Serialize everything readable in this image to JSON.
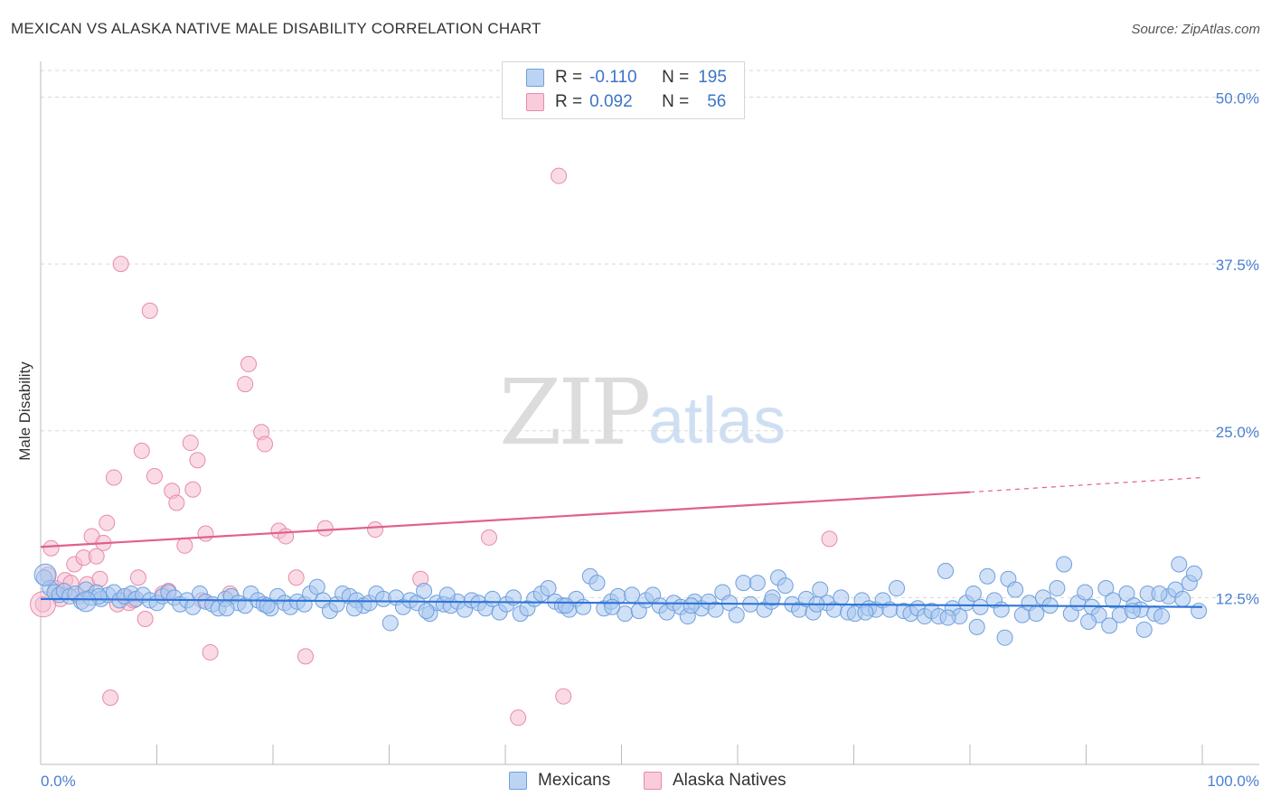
{
  "header": {
    "title": "MEXICAN VS ALASKA NATIVE MALE DISABILITY CORRELATION CHART",
    "source": "Source: ZipAtlas.com"
  },
  "watermark": {
    "zip": "ZIP",
    "atlas": "atlas"
  },
  "legend": {
    "rows": [
      {
        "r_label": "R =",
        "r_value": "-0.110",
        "n_label": "N =",
        "n_value": "195"
      },
      {
        "r_label": "R =",
        "r_value": "0.092",
        "n_label": "N =",
        "n_value": "56"
      }
    ]
  },
  "bottom_legend": {
    "series1": "Mexicans",
    "series2": "Alaska Natives"
  },
  "colors": {
    "blue_fill": "#aac8f0",
    "blue_stroke": "#6f9fdc",
    "blue_line": "#2f74d6",
    "pink_fill": "#f6bdd0",
    "pink_stroke": "#e88aab",
    "pink_line": "#e0608e",
    "tick_text": "#4a7fd0",
    "grid": "#d8d8d8"
  },
  "chart_data": {
    "type": "scatter",
    "title": "MEXICAN VS ALASKA NATIVE MALE DISABILITY CORRELATION CHART",
    "xlabel": "",
    "ylabel": "Male Disability",
    "xlim": [
      0,
      100
    ],
    "ylim": [
      0,
      52
    ],
    "x_tick_labels": [
      "0.0%",
      "100.0%"
    ],
    "y_ticks": [
      12.5,
      25.0,
      37.5,
      50.0
    ],
    "y_tick_labels": [
      "12.5%",
      "25.0%",
      "37.5%",
      "50.0%"
    ],
    "grid": "horizontal dashed",
    "legend_position": "top-center",
    "series": [
      {
        "name": "Mexicans",
        "r": -0.11,
        "n": 195,
        "trend": {
          "x": [
            0,
            100
          ],
          "y": [
            12.4,
            11.8
          ]
        },
        "points": [
          [
            0.3,
            14.0
          ],
          [
            0.8,
            13.2
          ],
          [
            1.2,
            12.9
          ],
          [
            1.6,
            12.7
          ],
          [
            2.0,
            13.0
          ],
          [
            2.5,
            12.6
          ],
          [
            3.0,
            12.8
          ],
          [
            3.5,
            12.2
          ],
          [
            3.9,
            13.1
          ],
          [
            4.3,
            12.5
          ],
          [
            4.8,
            12.9
          ],
          [
            5.2,
            12.4
          ],
          [
            5.8,
            12.7
          ],
          [
            6.3,
            12.9
          ],
          [
            6.8,
            12.3
          ],
          [
            7.2,
            12.6
          ],
          [
            7.8,
            12.8
          ],
          [
            8.2,
            12.4
          ],
          [
            8.8,
            12.7
          ],
          [
            9.4,
            12.3
          ],
          [
            10.0,
            12.1
          ],
          [
            10.5,
            12.6
          ],
          [
            11.0,
            12.9
          ],
          [
            11.5,
            12.5
          ],
          [
            12.0,
            12.0
          ],
          [
            12.6,
            12.3
          ],
          [
            13.1,
            11.8
          ],
          [
            13.7,
            12.8
          ],
          [
            14.2,
            12.2
          ],
          [
            14.8,
            12.0
          ],
          [
            15.3,
            11.7
          ],
          [
            15.9,
            12.4
          ],
          [
            16.4,
            12.6
          ],
          [
            17.0,
            12.1
          ],
          [
            17.6,
            11.9
          ],
          [
            18.1,
            12.8
          ],
          [
            18.7,
            12.3
          ],
          [
            19.2,
            12.0
          ],
          [
            19.8,
            11.7
          ],
          [
            20.4,
            12.6
          ],
          [
            21.0,
            12.1
          ],
          [
            21.5,
            11.8
          ],
          [
            22.1,
            12.2
          ],
          [
            22.7,
            12.0
          ],
          [
            23.2,
            12.8
          ],
          [
            23.8,
            13.3
          ],
          [
            24.3,
            12.3
          ],
          [
            24.9,
            11.5
          ],
          [
            25.5,
            12.0
          ],
          [
            26.0,
            12.8
          ],
          [
            26.6,
            12.6
          ],
          [
            27.2,
            12.3
          ],
          [
            27.8,
            11.9
          ],
          [
            28.3,
            12.1
          ],
          [
            28.9,
            12.8
          ],
          [
            29.5,
            12.4
          ],
          [
            30.1,
            10.6
          ],
          [
            30.6,
            12.5
          ],
          [
            31.2,
            11.8
          ],
          [
            31.8,
            12.3
          ],
          [
            32.4,
            12.1
          ],
          [
            33.0,
            13.0
          ],
          [
            33.5,
            11.3
          ],
          [
            34.1,
            12.1
          ],
          [
            34.7,
            12.0
          ],
          [
            35.3,
            11.9
          ],
          [
            35.9,
            12.2
          ],
          [
            36.5,
            11.6
          ],
          [
            37.1,
            12.3
          ],
          [
            37.7,
            12.1
          ],
          [
            38.3,
            11.7
          ],
          [
            38.9,
            12.4
          ],
          [
            39.5,
            11.4
          ],
          [
            40.1,
            12.0
          ],
          [
            40.7,
            12.5
          ],
          [
            41.3,
            11.3
          ],
          [
            41.9,
            11.7
          ],
          [
            42.5,
            12.4
          ],
          [
            43.1,
            12.8
          ],
          [
            43.7,
            13.2
          ],
          [
            44.3,
            12.2
          ],
          [
            44.9,
            11.9
          ],
          [
            45.5,
            11.6
          ],
          [
            46.1,
            12.4
          ],
          [
            46.7,
            11.8
          ],
          [
            47.3,
            14.1
          ],
          [
            47.9,
            13.6
          ],
          [
            48.5,
            11.7
          ],
          [
            49.1,
            12.2
          ],
          [
            49.7,
            12.6
          ],
          [
            50.3,
            11.3
          ],
          [
            50.9,
            12.7
          ],
          [
            51.5,
            11.5
          ],
          [
            52.1,
            12.3
          ],
          [
            52.7,
            12.7
          ],
          [
            53.3,
            11.9
          ],
          [
            53.9,
            11.4
          ],
          [
            54.5,
            12.1
          ],
          [
            55.1,
            11.8
          ],
          [
            55.7,
            11.1
          ],
          [
            56.3,
            12.2
          ],
          [
            56.9,
            11.7
          ],
          [
            57.5,
            12.2
          ],
          [
            58.1,
            11.6
          ],
          [
            58.7,
            12.9
          ],
          [
            59.3,
            12.1
          ],
          [
            59.9,
            11.2
          ],
          [
            60.5,
            13.6
          ],
          [
            61.1,
            12.0
          ],
          [
            61.7,
            13.6
          ],
          [
            62.3,
            11.6
          ],
          [
            62.9,
            12.2
          ],
          [
            63.5,
            14.0
          ],
          [
            64.1,
            13.4
          ],
          [
            64.7,
            12.0
          ],
          [
            65.3,
            11.6
          ],
          [
            65.9,
            12.4
          ],
          [
            66.5,
            11.4
          ],
          [
            67.1,
            13.1
          ],
          [
            67.7,
            12.1
          ],
          [
            68.3,
            11.6
          ],
          [
            68.9,
            12.5
          ],
          [
            69.5,
            11.4
          ],
          [
            70.1,
            11.3
          ],
          [
            70.7,
            12.3
          ],
          [
            71.3,
            11.7
          ],
          [
            71.9,
            11.6
          ],
          [
            72.5,
            12.3
          ],
          [
            73.1,
            11.6
          ],
          [
            73.7,
            13.2
          ],
          [
            74.3,
            11.5
          ],
          [
            74.9,
            11.3
          ],
          [
            75.5,
            11.7
          ],
          [
            76.1,
            11.1
          ],
          [
            76.7,
            11.5
          ],
          [
            77.3,
            11.1
          ],
          [
            77.9,
            14.5
          ],
          [
            78.5,
            11.7
          ],
          [
            79.1,
            11.1
          ],
          [
            79.7,
            12.1
          ],
          [
            80.3,
            12.8
          ],
          [
            80.9,
            11.8
          ],
          [
            81.5,
            14.1
          ],
          [
            82.1,
            12.3
          ],
          [
            82.7,
            11.6
          ],
          [
            83.3,
            13.9
          ],
          [
            83.9,
            13.1
          ],
          [
            84.5,
            11.2
          ],
          [
            85.1,
            12.1
          ],
          [
            85.7,
            11.3
          ],
          [
            86.3,
            12.5
          ],
          [
            86.9,
            11.9
          ],
          [
            87.5,
            13.2
          ],
          [
            88.1,
            15.0
          ],
          [
            88.7,
            11.3
          ],
          [
            89.3,
            12.1
          ],
          [
            89.9,
            12.9
          ],
          [
            90.5,
            11.8
          ],
          [
            91.1,
            11.2
          ],
          [
            91.7,
            13.2
          ],
          [
            92.3,
            12.3
          ],
          [
            92.9,
            11.2
          ],
          [
            93.5,
            12.8
          ],
          [
            94.1,
            11.9
          ],
          [
            94.7,
            11.6
          ],
          [
            95.3,
            12.8
          ],
          [
            95.9,
            11.3
          ],
          [
            96.5,
            11.1
          ],
          [
            97.1,
            12.6
          ],
          [
            97.7,
            13.1
          ],
          [
            98.3,
            12.4
          ],
          [
            98.9,
            13.6
          ],
          [
            99.3,
            14.3
          ],
          [
            99.7,
            11.5
          ],
          [
            16.0,
            11.7
          ],
          [
            19.5,
            11.9
          ],
          [
            33.2,
            11.5
          ],
          [
            45.2,
            11.9
          ],
          [
            49.2,
            11.8
          ],
          [
            66.8,
            12.0
          ],
          [
            71.0,
            11.4
          ],
          [
            78.1,
            11.0
          ],
          [
            80.6,
            10.3
          ],
          [
            83.0,
            9.5
          ],
          [
            90.2,
            10.7
          ],
          [
            92.0,
            10.4
          ],
          [
            94.0,
            11.5
          ],
          [
            95.0,
            10.1
          ],
          [
            96.3,
            12.8
          ],
          [
            5.0,
            12.6
          ],
          [
            27.0,
            11.7
          ],
          [
            35.0,
            12.7
          ],
          [
            56.0,
            11.9
          ],
          [
            63.0,
            12.5
          ],
          [
            98.0,
            15.0
          ]
        ]
      },
      {
        "name": "Alaska Natives",
        "r": 0.092,
        "n": 56,
        "trend": {
          "x": [
            0,
            80
          ],
          "y": [
            16.3,
            20.4
          ],
          "dashed_extension": {
            "x": [
              80,
              100
            ],
            "y": [
              20.4,
              21.5
            ]
          }
        },
        "points": [
          [
            0.2,
            12.0
          ],
          [
            0.6,
            14.2
          ],
          [
            0.9,
            16.2
          ],
          [
            1.3,
            13.2
          ],
          [
            1.7,
            12.4
          ],
          [
            2.1,
            13.8
          ],
          [
            2.6,
            13.6
          ],
          [
            2.9,
            15.0
          ],
          [
            3.3,
            12.6
          ],
          [
            3.7,
            15.5
          ],
          [
            4.0,
            13.5
          ],
          [
            4.4,
            17.1
          ],
          [
            4.8,
            15.6
          ],
          [
            5.1,
            13.9
          ],
          [
            5.4,
            16.6
          ],
          [
            5.7,
            18.1
          ],
          [
            6.0,
            5.0
          ],
          [
            6.3,
            21.5
          ],
          [
            6.6,
            12.0
          ],
          [
            6.9,
            37.5
          ],
          [
            7.3,
            12.6
          ],
          [
            7.6,
            12.1
          ],
          [
            8.0,
            12.3
          ],
          [
            8.4,
            14.0
          ],
          [
            8.7,
            23.5
          ],
          [
            9.0,
            10.9
          ],
          [
            9.4,
            34.0
          ],
          [
            9.8,
            21.6
          ],
          [
            10.5,
            12.8
          ],
          [
            11.0,
            13.0
          ],
          [
            11.3,
            20.5
          ],
          [
            11.7,
            19.6
          ],
          [
            12.4,
            16.4
          ],
          [
            12.9,
            24.1
          ],
          [
            13.1,
            20.6
          ],
          [
            13.5,
            22.8
          ],
          [
            13.9,
            12.3
          ],
          [
            14.2,
            17.3
          ],
          [
            16.3,
            12.8
          ],
          [
            17.6,
            28.5
          ],
          [
            17.9,
            30.0
          ],
          [
            19.0,
            24.9
          ],
          [
            19.3,
            24.0
          ],
          [
            20.5,
            17.5
          ],
          [
            21.1,
            17.1
          ],
          [
            22.0,
            14.0
          ],
          [
            22.8,
            8.1
          ],
          [
            24.5,
            17.7
          ],
          [
            28.8,
            17.6
          ],
          [
            32.7,
            13.9
          ],
          [
            38.6,
            17.0
          ],
          [
            41.1,
            3.5
          ],
          [
            44.6,
            44.1
          ],
          [
            45.0,
            5.1
          ],
          [
            67.9,
            16.9
          ],
          [
            14.6,
            8.4
          ]
        ]
      }
    ]
  }
}
